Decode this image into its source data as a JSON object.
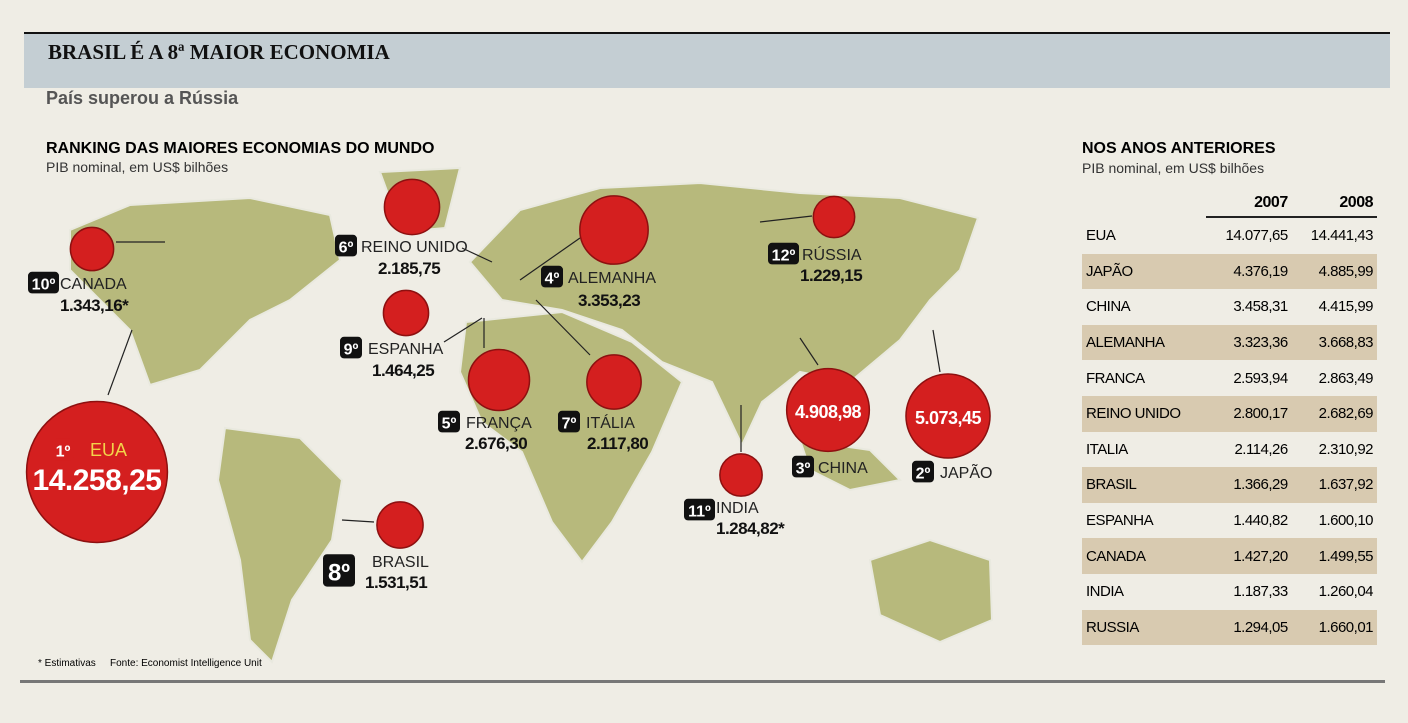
{
  "header": {
    "title": "BRASIL É A 8ª MAIOR ECONOMIA",
    "subtitle": "País superou a Rússia"
  },
  "map": {
    "title": "RANKING DAS MAIORES ECONOMIAS DO MUNDO",
    "subtitle": "PIB nominal, em US$ bilhões",
    "countries": [
      {
        "rank": "1º",
        "name": "EUA",
        "value": 14258.25,
        "label": "14.258,25"
      },
      {
        "rank": "2º",
        "name": "JAPÃO",
        "value": 5073.45,
        "label": "5.073,45"
      },
      {
        "rank": "3º",
        "name": "CHINA",
        "value": 4908.98,
        "label": "4.908,98"
      },
      {
        "rank": "4º",
        "name": "ALEMANHA",
        "value": 3353.23,
        "label": "3.353,23"
      },
      {
        "rank": "5º",
        "name": "FRANÇA",
        "value": 2676.3,
        "label": "2.676,30"
      },
      {
        "rank": "6º",
        "name": "REINO UNIDO",
        "value": 2185.75,
        "label": "2.185,75"
      },
      {
        "rank": "7º",
        "name": "ITÁLIA",
        "value": 2117.8,
        "label": "2.117,80"
      },
      {
        "rank": "8º",
        "name": "BRASIL",
        "value": 1531.51,
        "label": "1.531,51"
      },
      {
        "rank": "9º",
        "name": "ESPANHA",
        "value": 1464.25,
        "label": "1.464,25"
      },
      {
        "rank": "10º",
        "name": "CANADA",
        "value": 1343.16,
        "label": "1.343,16*"
      },
      {
        "rank": "11º",
        "name": "INDIA",
        "value": 1284.82,
        "label": "1.284,82*"
      },
      {
        "rank": "12º",
        "name": "RÚSSIA",
        "value": 1229.15,
        "label": "1.229,15"
      }
    ],
    "notes": [
      "* Estimativas",
      "Fonte: Economist Intelligence Unit"
    ]
  },
  "table": {
    "title": "NOS ANOS ANTERIORES",
    "subtitle": "PIB nominal, em US$ bilhões",
    "header": [
      "2007",
      "2008"
    ],
    "rows": [
      [
        "EUA",
        "14.077,65",
        "14.441,43"
      ],
      [
        "JAPÃO",
        "4.376,19",
        "4.885,99"
      ],
      [
        "CHINA",
        "3.458,31",
        "4.415,99"
      ],
      [
        "ALEMANHA",
        "3.323,36",
        "3.668,83"
      ],
      [
        "FRANCA",
        "2.593,94",
        "2.863,49"
      ],
      [
        "REINO UNIDO",
        "2.800,17",
        "2.682,69"
      ],
      [
        "ITALIA",
        "2.114,26",
        "2.310,92"
      ],
      [
        "BRASIL",
        "1.366,29",
        "1.637,92"
      ],
      [
        "ESPANHA",
        "1.440,82",
        "1.600,10"
      ],
      [
        "CANADA",
        "1.427,20",
        "1.499,55"
      ],
      [
        "INDIA",
        "1.187,33",
        "1.260,04"
      ],
      [
        "RUSSIA",
        "1.294,05",
        "1.660,01"
      ]
    ]
  }
}
